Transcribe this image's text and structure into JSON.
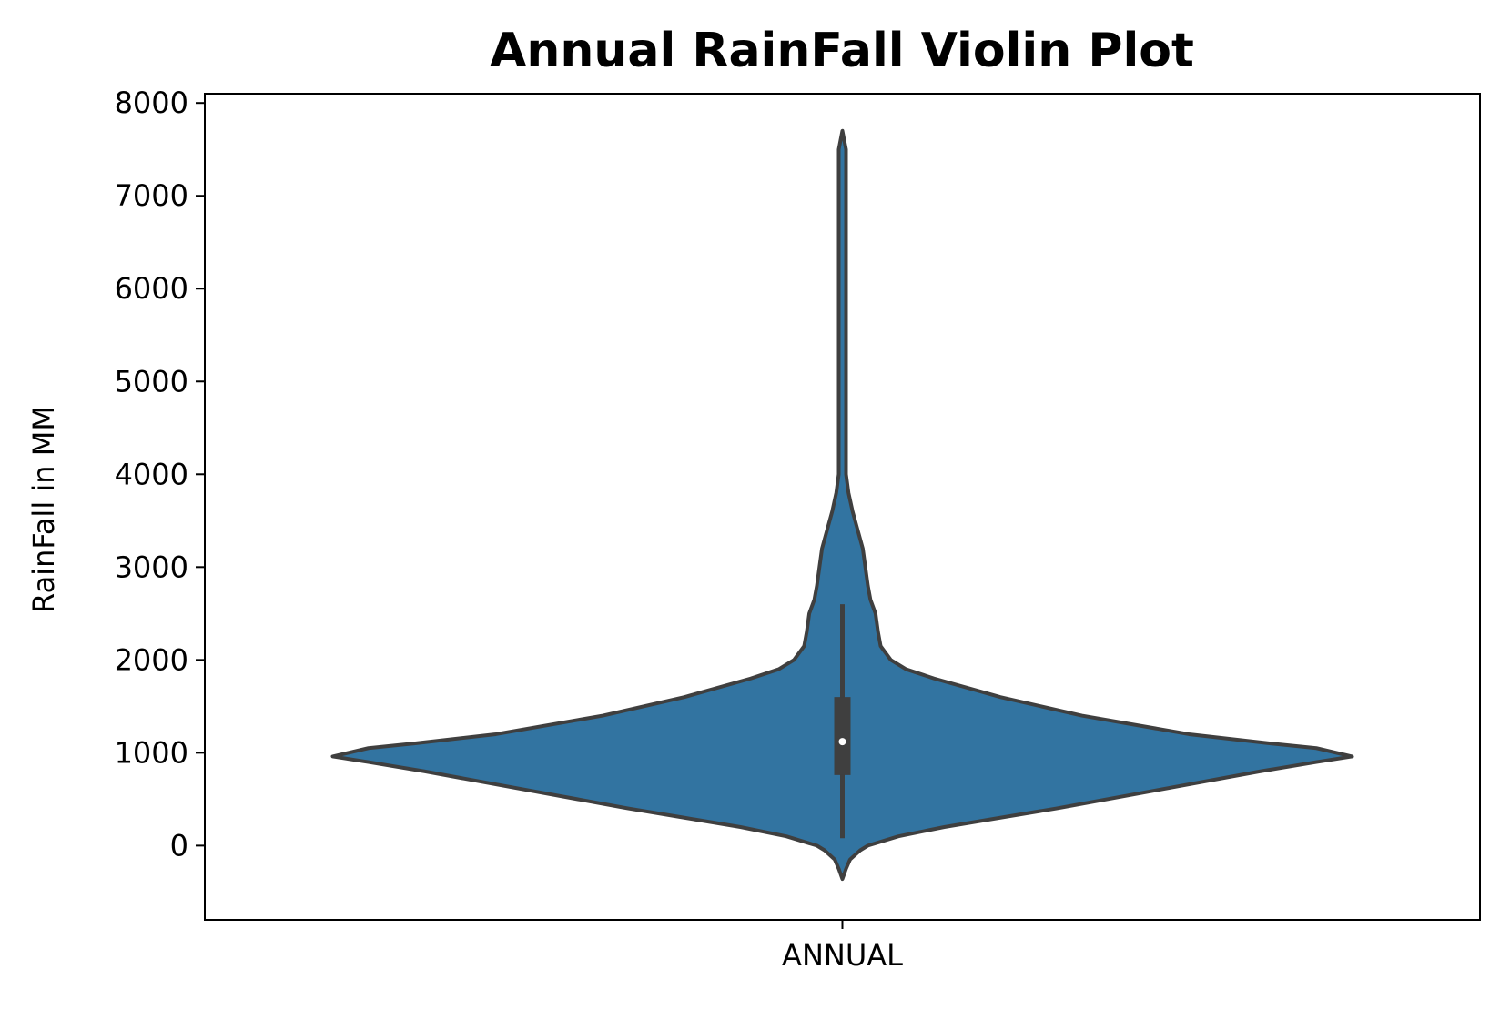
{
  "chart_data": {
    "type": "violin",
    "title": "Annual RainFall Violin Plot",
    "xlabel": "",
    "ylabel": "RainFall in MM",
    "categories": [
      "ANNUAL"
    ],
    "ylim": [
      -800,
      8100
    ],
    "yticks": [
      0,
      1000,
      2000,
      3000,
      4000,
      5000,
      6000,
      7000,
      8000
    ],
    "grid": false,
    "colors": {
      "body": "#3274a1",
      "outline": "#3f3f3f",
      "box": "#3f3f3f",
      "median": "#ffffff"
    },
    "density_profile": {
      "y": [
        -360,
        -250,
        -150,
        -50,
        0,
        100,
        200,
        300,
        400,
        600,
        800,
        900,
        960,
        1050,
        1100,
        1200,
        1400,
        1600,
        1800,
        1900,
        2000,
        2150,
        2300,
        2500,
        2650,
        2800,
        3000,
        3200,
        3400,
        3600,
        3800,
        4000,
        4300,
        4600,
        5000,
        5500,
        6000,
        6300,
        6600,
        7000,
        7250,
        7500,
        7700
      ],
      "width": [
        0.0,
        0.005,
        0.015,
        0.035,
        0.05,
        0.11,
        0.2,
        0.31,
        0.42,
        0.62,
        0.82,
        0.93,
        1.0,
        0.93,
        0.84,
        0.68,
        0.47,
        0.31,
        0.18,
        0.125,
        0.095,
        0.075,
        0.07,
        0.065,
        0.055,
        0.05,
        0.045,
        0.04,
        0.03,
        0.02,
        0.012,
        0.006,
        0.004,
        0.003,
        0.002,
        0.002,
        0.002,
        0.003,
        0.002,
        0.002,
        0.003,
        0.002,
        0.0
      ]
    },
    "whisker_low": 80,
    "q1": 760,
    "median": 1120,
    "q3": 1600,
    "whisker_high": 2600
  }
}
